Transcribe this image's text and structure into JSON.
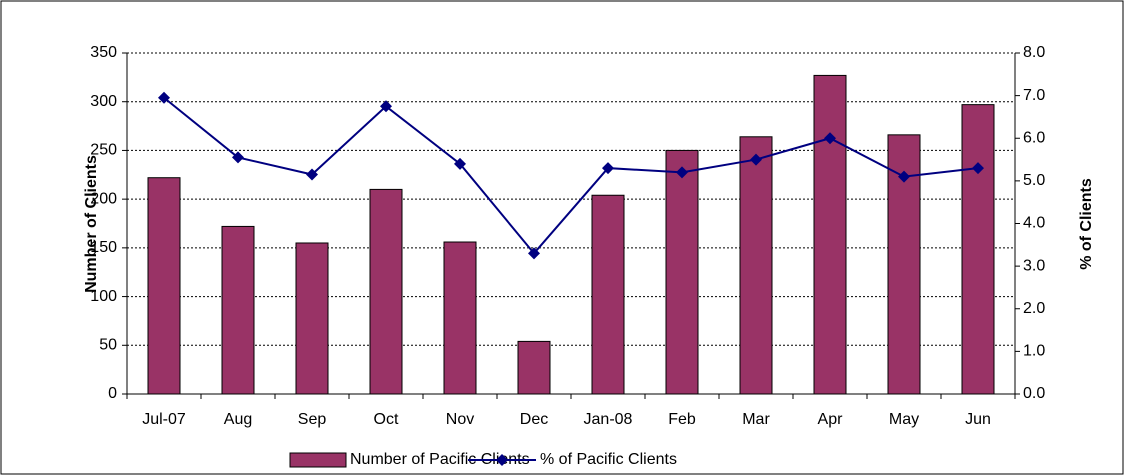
{
  "chart_data": {
    "type": "bar-line",
    "y_label": "Number of Clients",
    "y2_label": "% of Clients",
    "categories": [
      "Jul-07",
      "Aug",
      "Sep",
      "Oct",
      "Nov",
      "Dec",
      "Jan-08",
      "Feb",
      "Mar",
      "Apr",
      "May",
      "Jun"
    ],
    "series": [
      {
        "name": "Number of Pacific Clients",
        "type": "bar",
        "color": "#993366",
        "values": [
          222,
          172,
          155,
          210,
          156,
          54,
          204,
          250,
          264,
          327,
          266,
          297
        ]
      },
      {
        "name": "% of Pacific Clients",
        "type": "line",
        "axis": "y2",
        "color": "#000080",
        "values": [
          6.95,
          5.55,
          5.15,
          6.75,
          5.4,
          3.3,
          5.3,
          5.2,
          5.5,
          6.0,
          5.1,
          5.3
        ]
      }
    ],
    "ylim": [
      0,
      350
    ],
    "yticks": [
      0,
      50,
      100,
      150,
      200,
      250,
      300,
      350
    ],
    "y2lim": [
      0,
      8
    ],
    "y2ticks": [
      {
        "value": 0,
        "label": "0.0"
      },
      {
        "value": 1,
        "label": "1.0"
      },
      {
        "value": 2,
        "label": "2.0"
      },
      {
        "value": 3,
        "label": "3.0"
      },
      {
        "value": 4,
        "label": "4.0"
      },
      {
        "value": 5,
        "label": "5.0"
      },
      {
        "value": 6,
        "label": "6.0"
      },
      {
        "value": 7,
        "label": "7.0"
      },
      {
        "value": 8,
        "label": "8.0"
      }
    ],
    "grid": true,
    "legend": "bottom"
  }
}
